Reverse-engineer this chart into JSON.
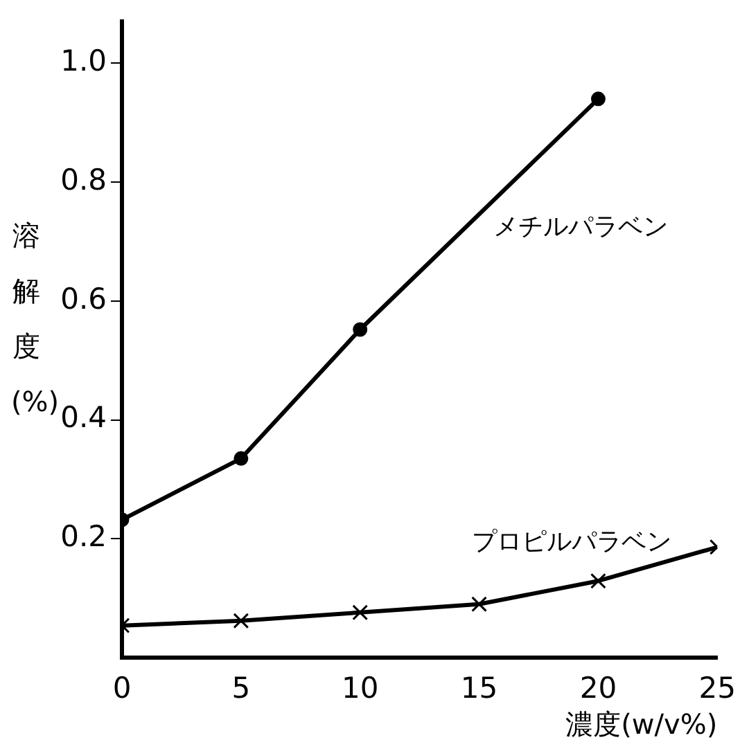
{
  "chart_data": {
    "type": "line",
    "xlabel": "濃度(w/v%)",
    "ylabel": "溶解度(%)",
    "xlim": [
      0,
      25
    ],
    "xticks": [
      0,
      5,
      10,
      15,
      20,
      25
    ],
    "ylim": [
      0,
      1.07
    ],
    "yticks": [
      0.2,
      0.4,
      0.6,
      0.8,
      {
        "value": 1.0,
        "label": "1.0"
      }
    ],
    "grid": false,
    "legend": false,
    "line_style": "solid",
    "series": [
      {
        "name": "メチルパラベン",
        "color": "#000000",
        "marker": "circle",
        "x": [
          0,
          5,
          10,
          20
        ],
        "values": [
          0.232,
          0.335,
          0.552,
          0.94
        ]
      },
      {
        "name": "プロピルパラベン",
        "color": "#000000",
        "marker": "cross",
        "x": [
          0,
          5,
          10,
          15,
          20,
          25
        ],
        "values": [
          0.054,
          0.062,
          0.076,
          0.09,
          0.129,
          0.186
        ]
      }
    ]
  }
}
